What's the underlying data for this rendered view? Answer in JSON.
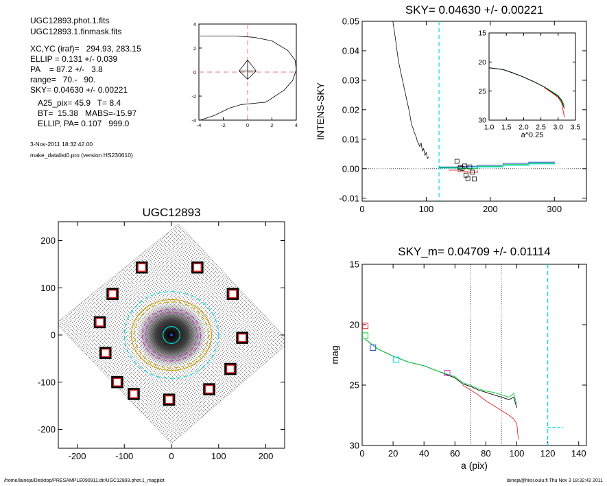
{
  "info": {
    "file1": "UGC12893.phot.1.fits",
    "file2": "UGC12893.1.finmask.fits",
    "xcyc": "XC,YC (iraf)=   294.93, 283.15",
    "ellip": "ELLIP = 0.131 +/- 0.039",
    "pa": "PA    = 87.2 +/-   3.8",
    "range": "range=   70.-   90.",
    "sky": "SKY= 0.04630 +/- 0.00221",
    "a25": "A25_pix= 45.9   T= 8.4",
    "bt": "BT=  15.38   MABS=-15.97",
    "ellip_pa": "ELLIP, PA= 0.107   999.0",
    "date": "3-Nov-2011 18:32:42.00",
    "program": "make_datalist0.pro (version HS230610)"
  },
  "footer": {
    "path": "/home/laineja/Desktop/PRESAMPLE090911.dir/UGC12893.phot.1_magplot",
    "user": "laineja@hiisi.oulu.fi  Thu Nov  3 18:32:42 2011"
  },
  "colors": {
    "axis": "#000000",
    "cyan": "#00dede",
    "red": "#dd2222",
    "green": "#00cc33",
    "blue": "#2244cc",
    "magenta": "#cc33cc",
    "yellow": "#c8a000",
    "dotted": "#555555",
    "pink_dash": "#ee7777"
  },
  "chart_data": [
    {
      "id": "center-plot",
      "type": "line",
      "title": "",
      "xlim": [
        -4,
        4
      ],
      "ylim": [
        -4,
        4
      ],
      "xticks": [
        -4,
        -2,
        0,
        2,
        4
      ],
      "yticks": [
        -4,
        -2,
        0,
        2,
        4
      ],
      "contour": [
        [
          -3.9,
          3.0
        ],
        [
          -2.5,
          3.0
        ],
        [
          -1.0,
          3.0
        ],
        [
          0.5,
          2.9
        ],
        [
          2.0,
          2.6
        ],
        [
          3.3,
          1.8
        ],
        [
          3.9,
          1.0
        ],
        [
          4.0,
          0.2
        ],
        [
          3.7,
          -0.7
        ],
        [
          3.0,
          -1.5
        ],
        [
          1.5,
          -2.5
        ],
        [
          -0.5,
          -2.7
        ],
        [
          -1.5,
          -3.0
        ],
        [
          -2.7,
          -3.6
        ],
        [
          -3.9,
          -4.0
        ]
      ],
      "diamond": [
        [
          0,
          1.0
        ],
        [
          0.7,
          0.1
        ],
        [
          0,
          -0.6
        ],
        [
          -0.7,
          0.1
        ],
        [
          0,
          1.0
        ]
      ]
    },
    {
      "id": "intens-sky",
      "type": "line",
      "title": "SKY= 0.04630 +/- 0.00221",
      "xlabel": "",
      "ylabel": "INTENS-SKY",
      "xlim": [
        0,
        350
      ],
      "ylim": [
        -0.011,
        0.05
      ],
      "xticks": [
        0,
        100,
        200,
        300
      ],
      "xtick_labels": [
        "0",
        "100",
        "200",
        "300"
      ],
      "yticks": [
        -0.01,
        0.0,
        0.01,
        0.02,
        0.03,
        0.04,
        0.05
      ],
      "ytick_labels": [
        "-0.01",
        "0.00",
        "0.01",
        "0.02",
        "0.03",
        "0.04",
        "0.05"
      ],
      "vline_x": 120,
      "profile": [
        [
          48,
          0.05
        ],
        [
          52,
          0.044
        ],
        [
          55,
          0.039
        ],
        [
          57,
          0.036
        ],
        [
          60,
          0.033
        ],
        [
          62,
          0.031
        ],
        [
          65,
          0.028
        ],
        [
          67,
          0.026
        ],
        [
          70,
          0.023
        ],
        [
          72,
          0.021
        ],
        [
          74,
          0.019
        ],
        [
          77,
          0.015
        ],
        [
          79,
          0.014
        ],
        [
          81,
          0.0125
        ],
        [
          84,
          0.011
        ],
        [
          86,
          0.0095
        ],
        [
          88,
          0.0085
        ],
        [
          90,
          0.0075
        ],
        [
          92,
          0.0088
        ],
        [
          94,
          0.006
        ],
        [
          96,
          0.0068
        ],
        [
          98,
          0.0045
        ],
        [
          100,
          0.0055
        ],
        [
          102,
          0.0035
        ],
        [
          104,
          0.004
        ]
      ],
      "squares": [
        [
          148,
          0.0025
        ],
        [
          153,
          0.0004
        ],
        [
          156,
          0.0001
        ],
        [
          160,
          0.0009
        ],
        [
          162,
          -0.0022
        ],
        [
          165,
          -0.0032
        ],
        [
          168,
          0.0006
        ],
        [
          172,
          -0.0012
        ],
        [
          175,
          -0.0035
        ]
      ],
      "series": [
        {
          "color": "blue",
          "points": [
            [
              120,
              0.0006
            ],
            [
              150,
              0.0008
            ],
            [
              180,
              0.0012
            ],
            [
              220,
              0.0018
            ],
            [
              260,
              0.0022
            ],
            [
              300,
              0.0024
            ]
          ]
        },
        {
          "color": "green",
          "points": [
            [
              120,
              0.0004
            ],
            [
              150,
              0.0
            ],
            [
              180,
              0.0008
            ],
            [
              220,
              0.0014
            ],
            [
              260,
              0.0018
            ],
            [
              300,
              0.002
            ]
          ]
        },
        {
          "color": "cyan",
          "points": [
            [
              120,
              0.0002
            ],
            [
              150,
              0.0003
            ],
            [
              180,
              0.0006
            ],
            [
              220,
              0.0011
            ],
            [
              260,
              0.0016
            ],
            [
              300,
              0.0018
            ]
          ]
        },
        {
          "color": "red",
          "points": [
            [
              135,
              -0.0005
            ],
            [
              150,
              -0.001
            ],
            [
              165,
              -0.0012
            ],
            [
              180,
              -0.0006
            ]
          ]
        }
      ]
    },
    {
      "id": "inset",
      "type": "line",
      "xlabel": "a^0.25",
      "xlim": [
        1.0,
        3.5
      ],
      "ylim": [
        15,
        30
      ],
      "y_inverted": true,
      "xticks": [
        1.0,
        1.5,
        2.0,
        2.5,
        3.0,
        3.5
      ],
      "xtick_labels": [
        "1.0",
        "1.5",
        "2.0",
        "2.5",
        "3.0",
        "3.5"
      ],
      "yticks": [
        15,
        20,
        25,
        30
      ],
      "ytick_labels": [
        "15",
        "20",
        "25",
        "30"
      ],
      "series": [
        {
          "color": "green",
          "points": [
            [
              1.0,
              21.0
            ],
            [
              1.4,
              21.3
            ],
            [
              1.7,
              21.9
            ],
            [
              2.0,
              22.6
            ],
            [
              2.3,
              23.4
            ],
            [
              2.6,
              24.3
            ],
            [
              2.8,
              25.0
            ],
            [
              3.0,
              25.8
            ],
            [
              3.1,
              26.5
            ],
            [
              3.18,
              27.5
            ]
          ]
        },
        {
          "color": "black",
          "points": [
            [
              1.0,
              21.0
            ],
            [
              1.4,
              21.3
            ],
            [
              1.7,
              21.9
            ],
            [
              2.0,
              22.6
            ],
            [
              2.3,
              23.4
            ],
            [
              2.6,
              24.3
            ],
            [
              2.8,
              25.1
            ],
            [
              3.0,
              25.9
            ],
            [
              3.1,
              26.7
            ],
            [
              3.18,
              28.0
            ]
          ]
        },
        {
          "color": "red",
          "points": [
            [
              2.6,
              24.4
            ],
            [
              2.8,
              25.2
            ],
            [
              3.0,
              26.1
            ],
            [
              3.1,
              27.0
            ],
            [
              3.18,
              29.5
            ]
          ]
        }
      ]
    },
    {
      "id": "galaxy-image",
      "type": "scatter",
      "title": "UGC12893",
      "xlim": [
        -240,
        240
      ],
      "ylim": [
        -240,
        240
      ],
      "xticks": [
        -200,
        -100,
        0,
        100,
        200
      ],
      "xtick_labels": [
        "-200",
        "-100",
        "0",
        "100",
        "200"
      ],
      "yticks": [
        -200,
        -100,
        0,
        100,
        200
      ],
      "ytick_labels": [
        "-200",
        "-100",
        "0",
        "100",
        "200"
      ],
      "masked_stars": [
        [
          -63,
          143
        ],
        [
          55,
          143
        ],
        [
          -125,
          87
        ],
        [
          130,
          87
        ],
        [
          -152,
          27
        ],
        [
          150,
          -6
        ],
        [
          -140,
          -38
        ],
        [
          125,
          -72
        ],
        [
          -115,
          -100
        ],
        [
          80,
          -115
        ],
        [
          -80,
          -125
        ],
        [
          -5,
          -137
        ]
      ],
      "ellipses": [
        {
          "rx": 18,
          "ry": 18,
          "color": "cyan",
          "dash": false
        },
        {
          "rx": 55,
          "ry": 48,
          "color": "magenta",
          "dash": true
        },
        {
          "rx": 62,
          "ry": 55,
          "color": "magenta",
          "dash": true
        },
        {
          "rx": 85,
          "ry": 75,
          "color": "yellow",
          "dash": false
        },
        {
          "rx": 78,
          "ry": 70,
          "color": "yellow",
          "dash": true
        },
        {
          "rx": 100,
          "ry": 92,
          "color": "cyan",
          "dash": true
        }
      ]
    },
    {
      "id": "sky-m",
      "type": "line",
      "title": "SKY_m=  0.04709 +/- 0.01114",
      "xlabel": "a (pix)",
      "ylabel": "mag",
      "xlim": [
        0,
        145
      ],
      "ylim": [
        15,
        30
      ],
      "y_inverted": true,
      "xticks": [
        0,
        20,
        40,
        60,
        80,
        100,
        120,
        140
      ],
      "xtick_labels": [
        "0",
        "20",
        "40",
        "60",
        "80",
        "100",
        "120",
        "140"
      ],
      "yticks": [
        15,
        20,
        25,
        30
      ],
      "ytick_labels": [
        "15",
        "20",
        "25",
        "30"
      ],
      "vlines_dotted": [
        70,
        90
      ],
      "vline_cyan": 120,
      "hseg_cyan": [
        [
          120,
          28.5
        ],
        [
          130,
          28.5
        ]
      ],
      "squares": [
        {
          "x": 2,
          "y": 20.1,
          "color": "red"
        },
        {
          "x": 2,
          "y": 20.9,
          "color": "green"
        },
        {
          "x": 7,
          "y": 21.9,
          "color": "blue"
        },
        {
          "x": 22,
          "y": 22.9,
          "color": "cyan"
        },
        {
          "x": 55,
          "y": 24.0,
          "color": "magenta"
        }
      ],
      "series": [
        {
          "color": "black",
          "points": [
            [
              2,
              21.2
            ],
            [
              10,
              22.0
            ],
            [
              20,
              22.6
            ],
            [
              30,
              23.1
            ],
            [
              40,
              23.4
            ],
            [
              50,
              23.9
            ],
            [
              60,
              24.4
            ],
            [
              65,
              24.9
            ],
            [
              70,
              25.1
            ],
            [
              75,
              25.4
            ],
            [
              80,
              25.6
            ],
            [
              85,
              25.8
            ],
            [
              90,
              26.0
            ],
            [
              95,
              26.2
            ],
            [
              98,
              26.0
            ],
            [
              100,
              26.9
            ]
          ]
        },
        {
          "color": "green",
          "points": [
            [
              2,
              21.2
            ],
            [
              10,
              22.0
            ],
            [
              20,
              22.6
            ],
            [
              30,
              23.1
            ],
            [
              40,
              23.4
            ],
            [
              50,
              23.9
            ],
            [
              60,
              24.3
            ],
            [
              65,
              24.8
            ],
            [
              70,
              25.0
            ],
            [
              75,
              25.3
            ],
            [
              80,
              25.5
            ],
            [
              85,
              25.6
            ],
            [
              90,
              25.8
            ],
            [
              95,
              26.0
            ],
            [
              98,
              25.7
            ],
            [
              100,
              26.6
            ]
          ]
        },
        {
          "color": "red",
          "points": [
            [
              65,
              25.0
            ],
            [
              70,
              25.4
            ],
            [
              75,
              25.8
            ],
            [
              80,
              26.3
            ],
            [
              85,
              26.7
            ],
            [
              90,
              27.1
            ],
            [
              95,
              27.5
            ],
            [
              98,
              27.8
            ],
            [
              100,
              28.2
            ],
            [
              101,
              29.5
            ]
          ]
        }
      ]
    }
  ]
}
